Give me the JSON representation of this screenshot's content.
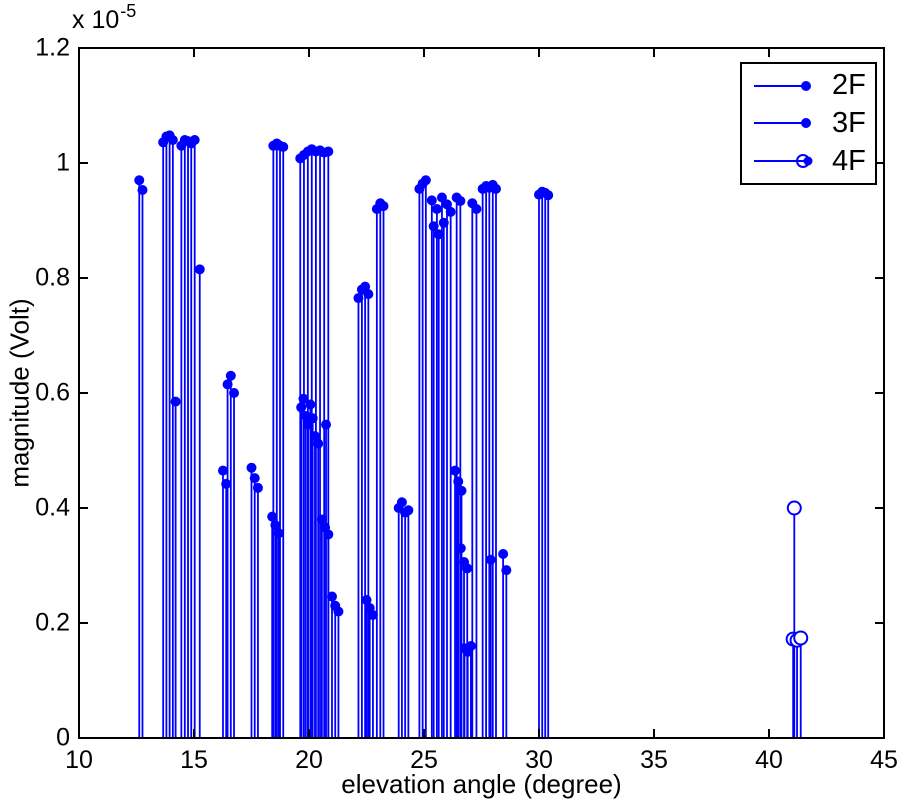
{
  "figure": {
    "x_axis_label": "elevation angle (degree)",
    "y_axis_label": "magnitude (Volt)",
    "y_multiplier_base": "x 10",
    "y_multiplier_exponent": "-5"
  },
  "colors": {
    "stem": "#0000ff",
    "axis": "#000000",
    "text": "#000000",
    "background": "#ffffff"
  },
  "chart_data": {
    "type": "stem",
    "title": "",
    "xlabel": "elevation angle (degree)",
    "ylabel": "magnitude (Volt)",
    "xlim": [
      10,
      45
    ],
    "ylim_display": [
      0,
      1.2
    ],
    "y_scale_factor": 1e-05,
    "x_ticks": [
      10,
      15,
      20,
      25,
      30,
      35,
      40,
      45
    ],
    "y_ticks": [
      0,
      0.2,
      0.4,
      0.6,
      0.8,
      1,
      1.2
    ],
    "grid": false,
    "legend_position": "upper-right",
    "units": {
      "x": "degree",
      "y": "x1e-5 Volt"
    },
    "series": [
      {
        "name": "2F",
        "marker": "filled-dot",
        "points": [
          [
            12.62,
            0.97
          ],
          [
            12.76,
            0.953
          ],
          [
            13.66,
            1.036
          ],
          [
            13.8,
            1.046
          ],
          [
            13.94,
            1.048
          ],
          [
            14.08,
            1.04
          ],
          [
            14.45,
            1.03
          ],
          [
            14.6,
            1.04
          ],
          [
            14.74,
            1.038
          ],
          [
            14.88,
            1.034
          ],
          [
            15.03,
            1.04
          ],
          [
            15.25,
            0.815
          ],
          [
            18.45,
            1.03
          ],
          [
            18.6,
            1.034
          ],
          [
            18.74,
            1.03
          ],
          [
            18.88,
            1.028
          ],
          [
            19.62,
            1.008
          ],
          [
            19.78,
            1.014
          ],
          [
            19.95,
            1.02
          ],
          [
            20.12,
            1.024
          ],
          [
            20.3,
            1.02
          ],
          [
            20.48,
            1.022
          ],
          [
            20.66,
            1.018
          ],
          [
            20.84,
            1.02
          ],
          [
            22.15,
            0.765
          ],
          [
            22.3,
            0.78
          ],
          [
            22.44,
            0.785
          ],
          [
            22.58,
            0.772
          ],
          [
            22.95,
            0.92
          ],
          [
            23.1,
            0.93
          ],
          [
            23.24,
            0.925
          ],
          [
            24.8,
            0.955
          ],
          [
            24.94,
            0.964
          ],
          [
            25.08,
            0.97
          ],
          [
            25.34,
            0.935
          ],
          [
            25.42,
            0.89
          ],
          [
            25.56,
            0.92
          ],
          [
            25.64,
            0.876
          ],
          [
            25.78,
            0.94
          ],
          [
            25.86,
            0.896
          ],
          [
            26.0,
            0.928
          ],
          [
            26.16,
            0.915
          ],
          [
            26.42,
            0.94
          ],
          [
            26.58,
            0.934
          ],
          [
            27.1,
            0.93
          ],
          [
            27.28,
            0.92
          ],
          [
            27.55,
            0.955
          ],
          [
            27.7,
            0.96
          ],
          [
            27.84,
            0.957
          ],
          [
            27.99,
            0.962
          ],
          [
            28.13,
            0.955
          ],
          [
            30.0,
            0.945
          ],
          [
            30.14,
            0.95
          ],
          [
            30.27,
            0.948
          ],
          [
            30.4,
            0.944
          ]
        ]
      },
      {
        "name": "3F",
        "marker": "filled-dot",
        "points": [
          [
            14.2,
            0.585
          ],
          [
            16.26,
            0.465
          ],
          [
            16.4,
            0.442
          ],
          [
            16.46,
            0.615
          ],
          [
            16.6,
            0.63
          ],
          [
            16.74,
            0.6
          ],
          [
            17.5,
            0.47
          ],
          [
            17.64,
            0.452
          ],
          [
            17.78,
            0.435
          ],
          [
            18.4,
            0.385
          ],
          [
            18.54,
            0.37
          ],
          [
            18.68,
            0.356
          ],
          [
            19.66,
            0.575
          ],
          [
            19.76,
            0.59
          ],
          [
            19.86,
            0.56
          ],
          [
            19.96,
            0.545
          ],
          [
            20.06,
            0.58
          ],
          [
            20.16,
            0.556
          ],
          [
            20.26,
            0.525
          ],
          [
            20.4,
            0.512
          ],
          [
            20.74,
            0.545
          ],
          [
            20.56,
            0.38
          ],
          [
            20.7,
            0.366
          ],
          [
            20.84,
            0.354
          ],
          [
            21.0,
            0.246
          ],
          [
            21.14,
            0.23
          ],
          [
            21.28,
            0.22
          ],
          [
            22.5,
            0.24
          ],
          [
            22.64,
            0.226
          ],
          [
            22.78,
            0.214
          ],
          [
            23.9,
            0.4
          ],
          [
            24.04,
            0.41
          ],
          [
            24.18,
            0.392
          ],
          [
            24.32,
            0.396
          ],
          [
            26.35,
            0.465
          ],
          [
            26.49,
            0.446
          ],
          [
            26.63,
            0.43
          ],
          [
            26.6,
            0.33
          ],
          [
            26.74,
            0.306
          ],
          [
            26.88,
            0.295
          ],
          [
            26.76,
            0.156
          ],
          [
            26.9,
            0.15
          ],
          [
            27.04,
            0.16
          ],
          [
            27.9,
            0.31
          ],
          [
            28.44,
            0.32
          ],
          [
            28.58,
            0.292
          ]
        ]
      },
      {
        "name": "4F",
        "marker": "open-circle",
        "points": [
          [
            41.1,
            0.4
          ],
          [
            41.05,
            0.172
          ],
          [
            41.22,
            0.17
          ],
          [
            41.38,
            0.174
          ]
        ]
      }
    ]
  }
}
